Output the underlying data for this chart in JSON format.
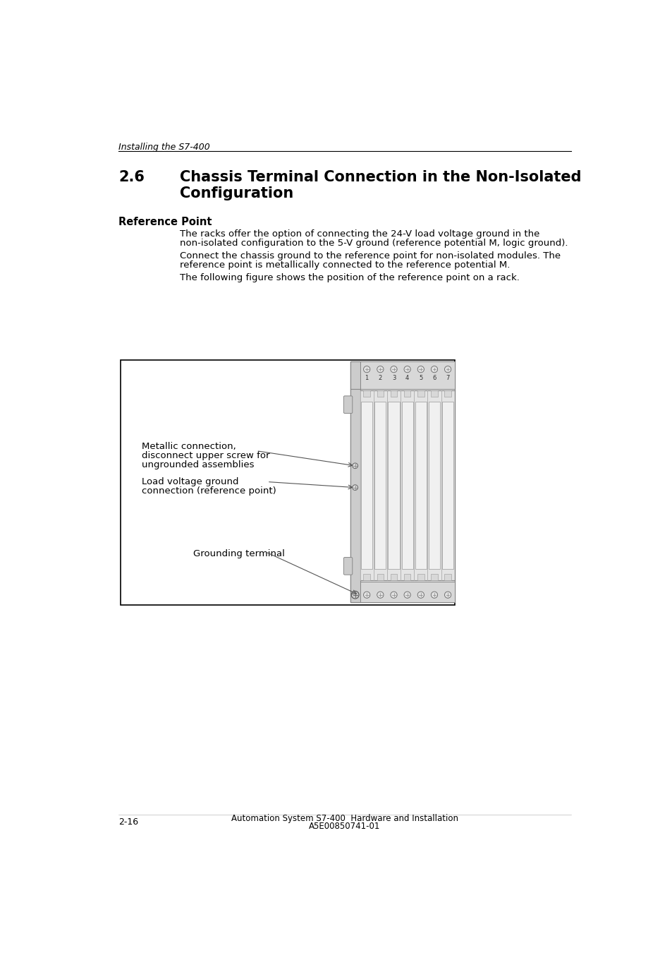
{
  "page_header_italic": "Installing the S7-400",
  "section_number": "2.6",
  "section_title_line1": "Chassis Terminal Connection in the Non-Isolated",
  "section_title_line2": "Configuration",
  "subsection_title": "Reference Point",
  "para1_line1": "The racks offer the option of connecting the 24-V load voltage ground in the",
  "para1_line2": "non-isolated configuration to the 5-V ground (reference potential M, logic ground).",
  "para2_line1": "Connect the chassis ground to the reference point for non-isolated modules. The",
  "para2_line2": "reference point is metallically connected to the reference potential M.",
  "para3": "The following figure shows the position of the reference point on a rack.",
  "label1_line1": "Metallic connection,",
  "label1_line2": "disconnect upper screw for",
  "label1_line3": "ungrounded assemblies",
  "label2_line1": "Load voltage ground",
  "label2_line2": "connection (reference point)",
  "label3": "Grounding terminal",
  "footer_left": "2-16",
  "footer_center": "Automation System S7-400  Hardware and Installation",
  "footer_right": "A5E00850741-01",
  "bg_color": "#ffffff",
  "text_color": "#000000"
}
